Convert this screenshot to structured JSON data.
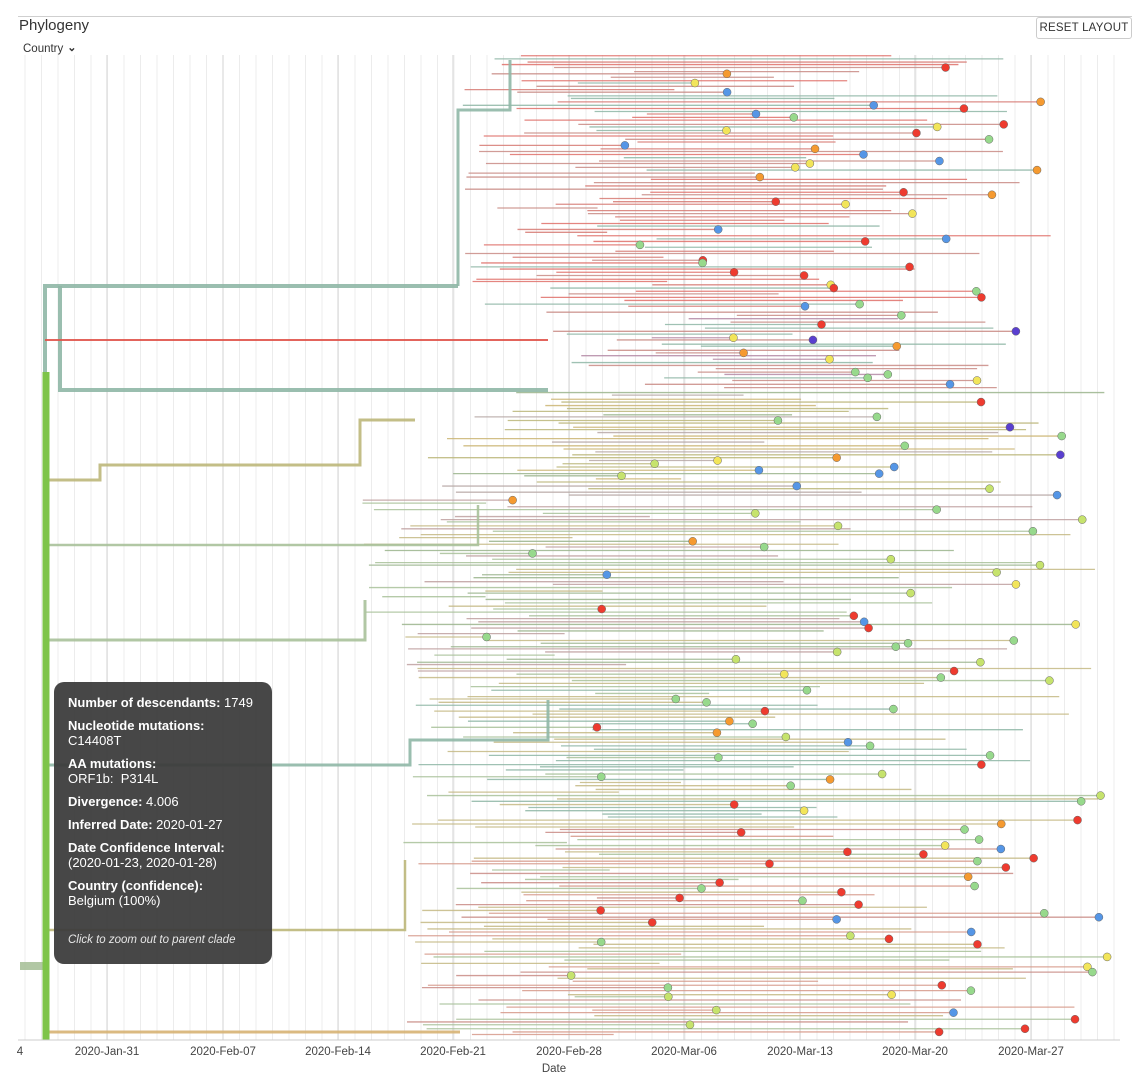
{
  "panel": {
    "title": "Phylogeny",
    "color_by_label": "Country",
    "reset_button_label": "RESET LAYOUT"
  },
  "axis": {
    "x_label": "Date",
    "ticks": [
      "4",
      "2020-Jan-31",
      "2020-Feb-07",
      "2020-Feb-14",
      "2020-Feb-21",
      "2020-Feb-28",
      "2020-Mar-06",
      "2020-Mar-13",
      "2020-Mar-20",
      "2020-Mar-27"
    ]
  },
  "tooltip": {
    "descendants_label": "Number of descendants:",
    "descendants_value": "1749",
    "nt_label": "Nucleotide mutations:",
    "nt_value": "C14408T",
    "aa_label": "AA mutations:",
    "aa_value": "ORF1b:  P314L",
    "divergence_label": "Divergence:",
    "divergence_value": "4.006",
    "date_label": "Inferred Date:",
    "date_value": "2020-01-27",
    "ci_label": "Date Confidence Interval:",
    "ci_value": "(2020-01-23, 2020-01-28)",
    "country_label": "Country (confidence):",
    "country_value": "Belgium (100%)",
    "hint": "Click to zoom out to parent clade"
  },
  "colors": {
    "stem": "#7ec44a",
    "clade_teal": "#8fb7a6",
    "clade_olive": "#bcb77a",
    "clade_sage": "#a9c19a",
    "red": "#ee3b2f",
    "green": "#97d98c",
    "yellow": "#f2e55a",
    "lime": "#c6e36d",
    "blue": "#5596e6",
    "purple": "#5a3fcf",
    "orange": "#f59a30",
    "grid": "#ececec"
  }
}
